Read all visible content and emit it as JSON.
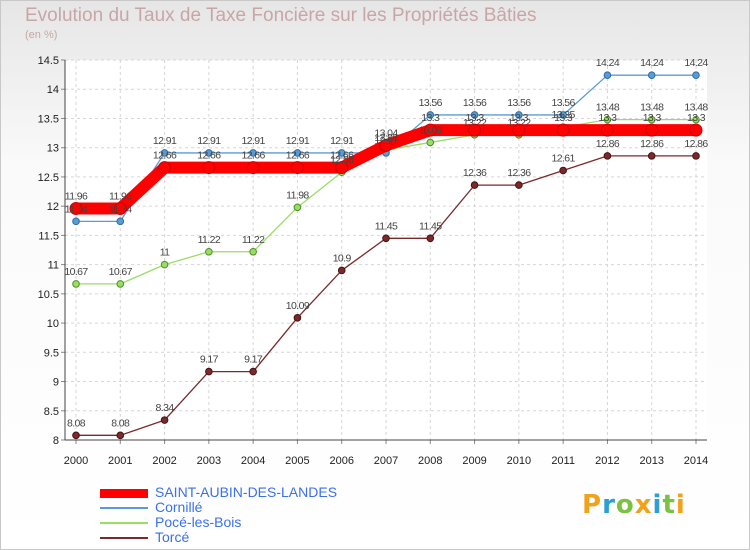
{
  "title": "Evolution du Taux de Taxe Foncière sur les Propriétés Bâties",
  "subtitle": "(en %)",
  "logo": {
    "letters": [
      "P",
      "r",
      "o",
      "x",
      "i",
      "t",
      "i"
    ],
    "colors": [
      "#f2a21a",
      "#2b9fd8",
      "#7cc242",
      "#f2a21a",
      "#2b9fd8",
      "#7cc242",
      "#f2a21a"
    ]
  },
  "chart_data": {
    "type": "line",
    "title": "Evolution du Taux de Taxe Foncière sur les Propriétés Bâties",
    "ylabel": "(en %)",
    "xlabel": "",
    "ylim": [
      8,
      14.5
    ],
    "yticks": [
      "8",
      "8.5",
      "9",
      "9.5",
      "10",
      "10.5",
      "11",
      "11.5",
      "12",
      "12.5",
      "13",
      "13.5",
      "14",
      "14.5"
    ],
    "x": [
      "2000",
      "2001",
      "2002",
      "2003",
      "2004",
      "2005",
      "2006",
      "2007",
      "2008",
      "2009",
      "2010",
      "2011",
      "2012",
      "2013",
      "2014"
    ],
    "series": [
      {
        "name": "SAINT-AUBIN-DES-LANDES",
        "color": "#ff0000",
        "marker_stroke": "#cc0000",
        "values": [
          11.96,
          11.96,
          12.66,
          12.66,
          12.66,
          12.66,
          12.66,
          13.04,
          13.3,
          13.3,
          13.3,
          13.3,
          13.3,
          13.3,
          13.3
        ],
        "labels": [
          "11.96",
          "11.96",
          "12.66",
          "12.66",
          "12.66",
          "12.66",
          "12.66",
          "13.04",
          "13.3",
          "13.3",
          "13.3",
          "13.3",
          "13.3",
          "13.3",
          "13.3"
        ]
      },
      {
        "name": "Cornillé",
        "color": "#5b9bd5",
        "marker_stroke": "#2e6da4",
        "values": [
          11.74,
          11.74,
          12.91,
          12.91,
          12.91,
          12.91,
          12.91,
          12.91,
          13.56,
          13.56,
          13.56,
          13.56,
          14.24,
          14.24,
          14.24
        ],
        "labels": [
          "11.74",
          "11.74",
          "12.91",
          "12.91",
          "12.91",
          "12.91",
          "12.91",
          "12.91",
          "13.56",
          "13.56",
          "13.56",
          "13.56",
          "14.24",
          "14.24",
          "14.24"
        ]
      },
      {
        "name": "Pocé-les-Bois",
        "color": "#99dd66",
        "marker_stroke": "#4d8f25",
        "values": [
          10.67,
          10.67,
          11,
          11.22,
          11.22,
          11.98,
          12.58,
          12.96,
          13.09,
          13.22,
          13.22,
          13.35,
          13.48,
          13.48,
          13.48
        ],
        "labels": [
          "10.67",
          "10.67",
          "11",
          "11.22",
          "11.22",
          "11.98",
          "12.58",
          "12.96",
          "13.09",
          "13.22",
          "13.22",
          "13.35",
          "13.48",
          "13.48",
          "13.48"
        ]
      },
      {
        "name": "Torcé",
        "color": "#7a2a2a",
        "marker_stroke": "#4a1010",
        "values": [
          8.08,
          8.08,
          8.34,
          9.17,
          9.17,
          10.09,
          10.9,
          11.45,
          11.45,
          12.36,
          12.36,
          12.61,
          12.86,
          12.86,
          12.86
        ],
        "labels": [
          "8.08",
          "8.08",
          "8.34",
          "9.17",
          "9.17",
          "10.09",
          "10.9",
          "11.45",
          "11.45",
          "12.36",
          "12.36",
          "12.61",
          "12.86",
          "12.86",
          "12.86"
        ]
      }
    ],
    "legend_position": "bottom-left",
    "grid": true
  }
}
